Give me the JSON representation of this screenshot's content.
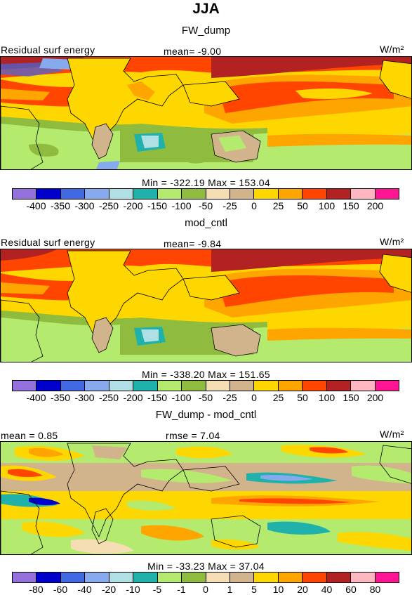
{
  "page_title": "JJA",
  "panels": [
    {
      "title": "FW_dump",
      "left_label": "Residual surf energy",
      "center_label": "mean=   -9.00",
      "units": "W/m²",
      "minmax": "Min = -322.19  Max = 153.04"
    },
    {
      "title": "mod_cntl",
      "left_label": "Residual surf energy",
      "center_label": "mean=   -9.84",
      "units": "W/m²",
      "minmax": "Min = -338.20  Max = 151.65"
    },
    {
      "title": "FW_dump - mod_cntl",
      "left_label": "mean =    0.85",
      "center_label": "rmse =    7.04",
      "units": "W/m²",
      "minmax": "Min = -33.23  Max =  37.04"
    }
  ],
  "colorbar_colors": [
    "#9370db",
    "#0000cd",
    "#4169e1",
    "#87a9ee",
    "#b0e0e6",
    "#20b2aa",
    "#b4eb6e",
    "#8fbc3f",
    "#f5deb3",
    "#d2b48c",
    "#ffd700",
    "#ffa500",
    "#ff4500",
    "#b22222",
    "#ffb6c1",
    "#ff1493"
  ],
  "colorbar_labels_abs": [
    "-400",
    "-350",
    "-300",
    "-250",
    "-200",
    "-150",
    "-100",
    "-50",
    "-25",
    "0",
    "25",
    "50",
    "100",
    "150",
    "200"
  ],
  "colorbar_labels_diff": [
    "-80",
    "-60",
    "-40",
    "-20",
    "-10",
    "-5",
    "-1",
    "0",
    "1",
    "5",
    "10",
    "20",
    "40",
    "60",
    "80"
  ]
}
